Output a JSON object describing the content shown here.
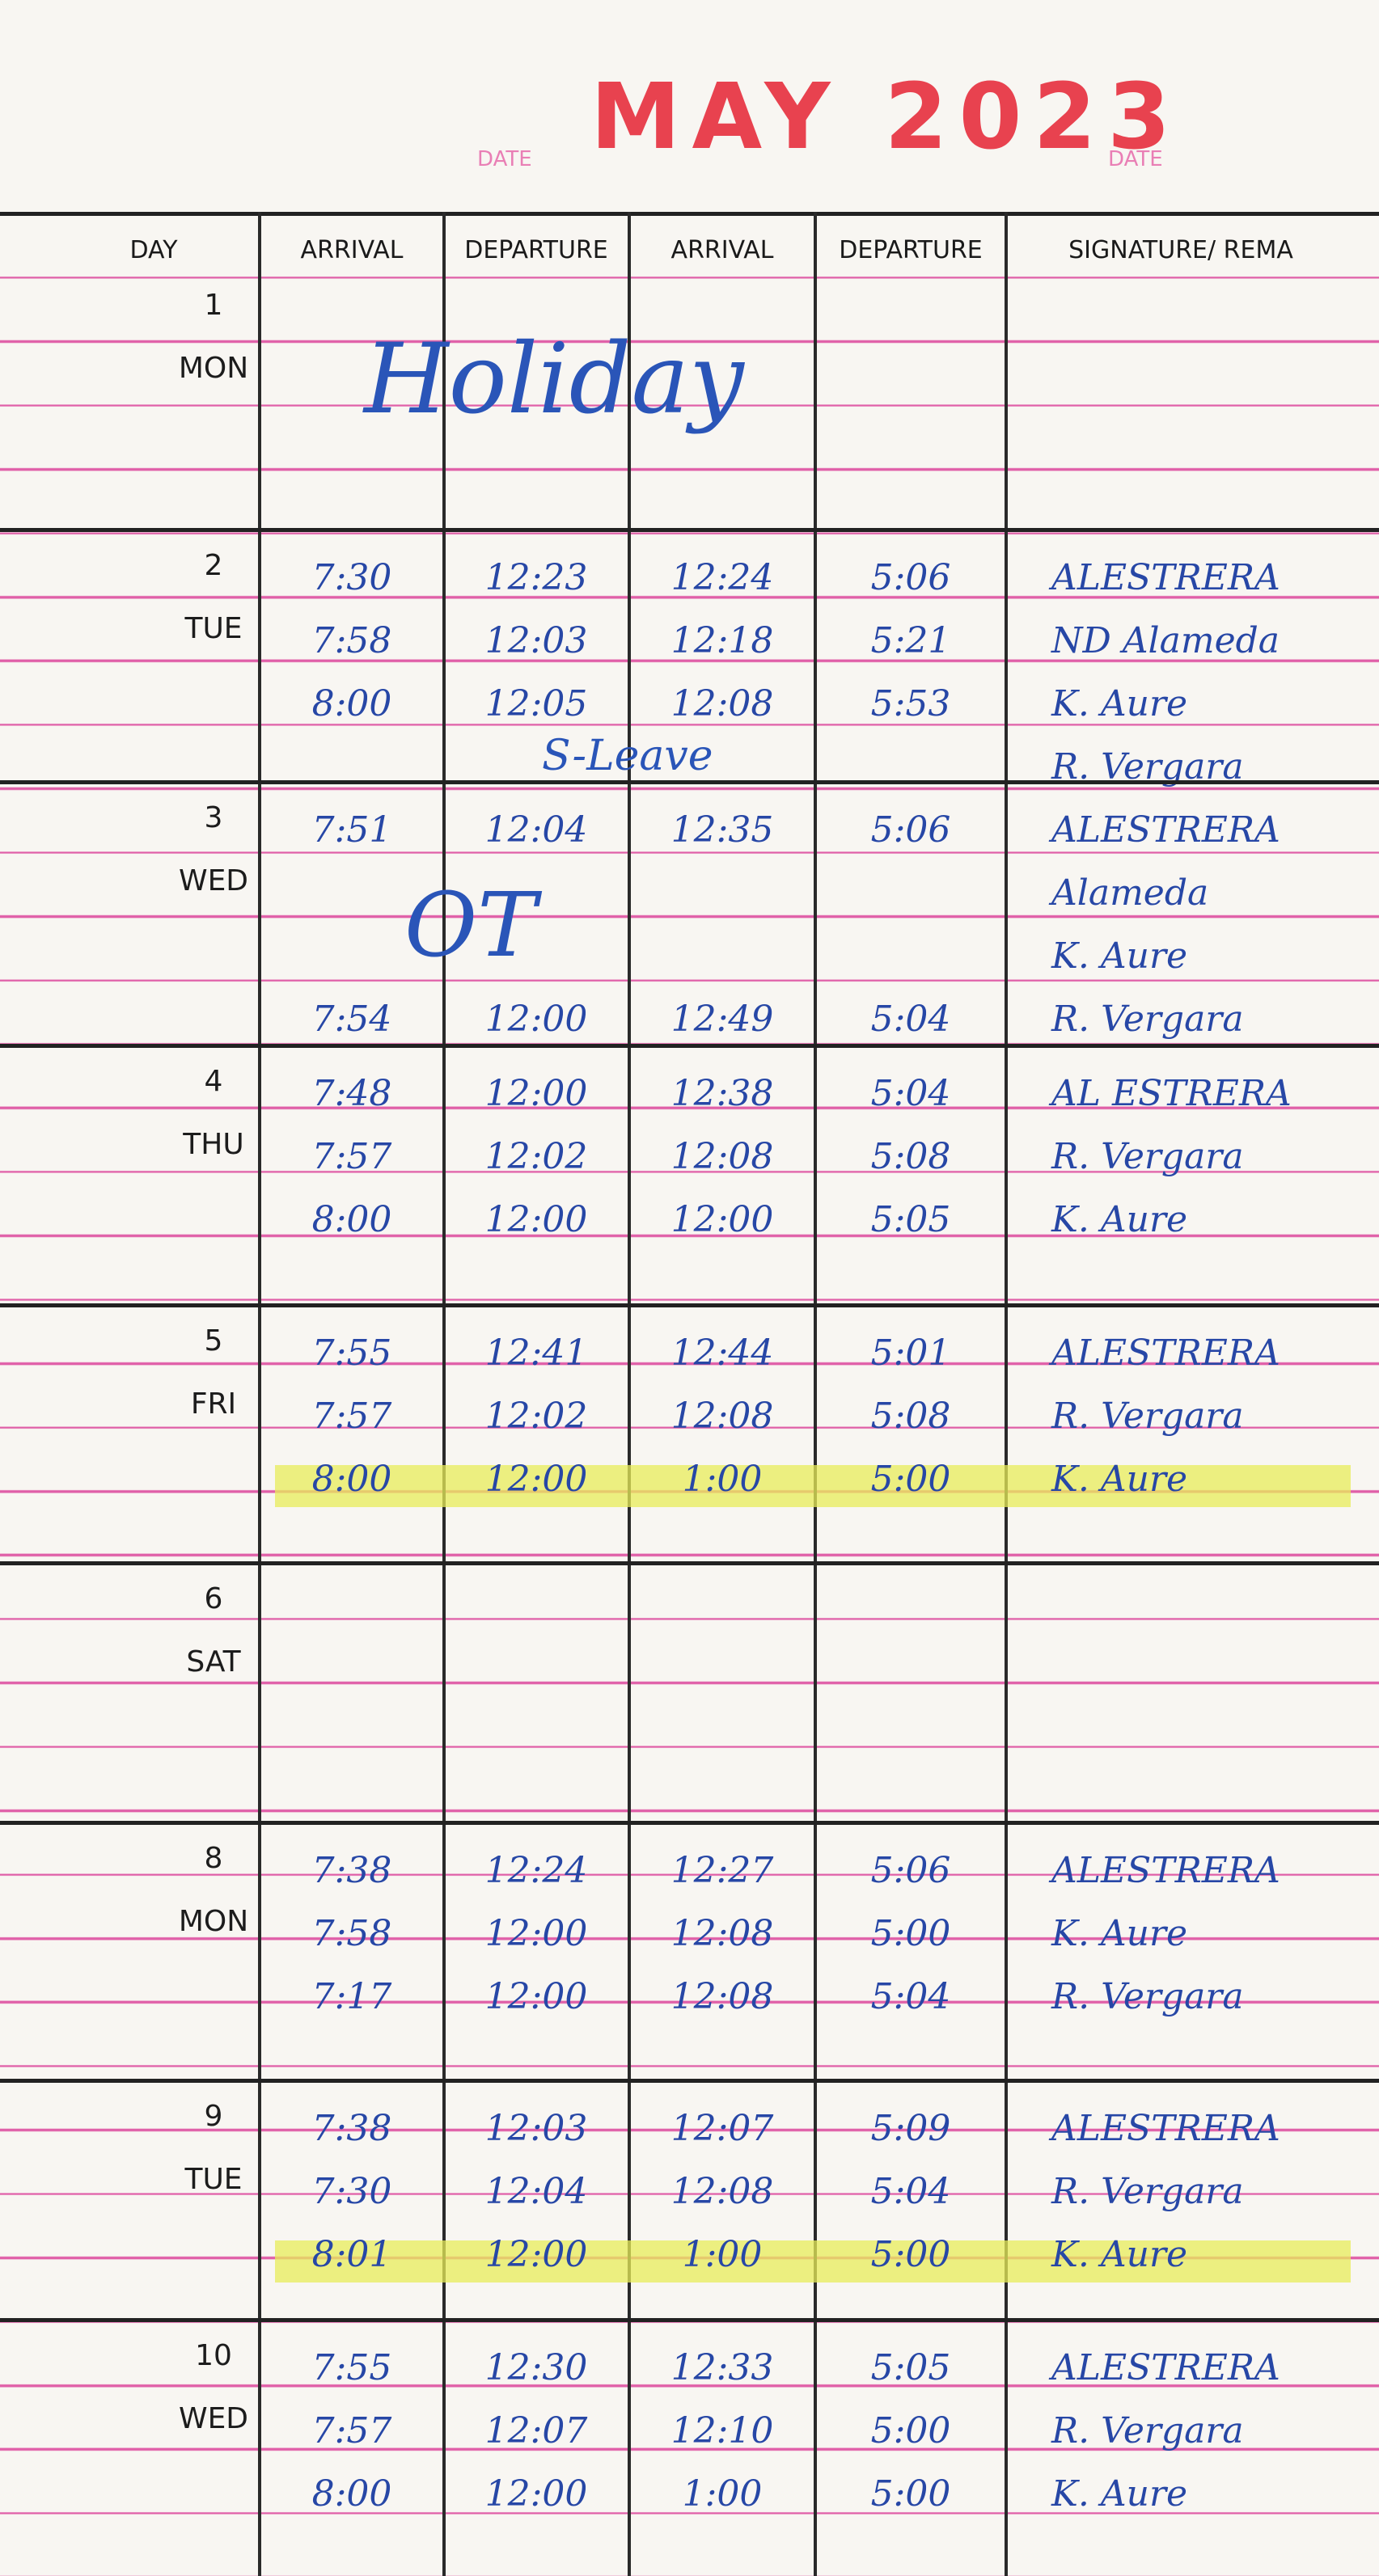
{
  "header": {
    "title": "MAY 2023",
    "date_labels": [
      "DATE",
      "DATE"
    ]
  },
  "table": {
    "headers": [
      "DAY",
      "ARRIVAL",
      "DEPARTURE",
      "ARRIVAL",
      "DEPARTURE",
      "SIGNATURE/ REMA"
    ]
  },
  "days": [
    {
      "number": "1",
      "weekday": "MON",
      "note": "Holiday",
      "rows": []
    },
    {
      "number": "2",
      "weekday": "TUE",
      "note": "S-Leave",
      "rows": [
        [
          "7:30",
          "12:23",
          "12:24",
          "5:06",
          "ALESTRERA"
        ],
        [
          "7:58",
          "12:03",
          "12:18",
          "5:21",
          "ND Alameda"
        ],
        [
          "8:00",
          "12:05",
          "12:08",
          "5:53",
          "K. Aure"
        ],
        [
          "",
          "",
          "",
          "",
          "R. Vergara"
        ]
      ]
    },
    {
      "number": "3",
      "weekday": "WED",
      "note": "OT",
      "rows": [
        [
          "7:51",
          "12:04",
          "12:35",
          "5:06",
          "ALESTRERA"
        ],
        [
          "",
          "",
          "",
          "",
          "Alameda"
        ],
        [
          "",
          "",
          "",
          "",
          "K. Aure"
        ],
        [
          "7:54",
          "12:00",
          "12:49",
          "5:04",
          "R. Vergara"
        ]
      ]
    },
    {
      "number": "4",
      "weekday": "THU",
      "rows": [
        [
          "7:48",
          "12:00",
          "12:38",
          "5:04",
          "AL ESTRERA"
        ],
        [
          "7:57",
          "12:02",
          "12:08",
          "5:08",
          "R. Vergara"
        ],
        [
          "8:00",
          "12:00",
          "12:00",
          "5:05",
          "K. Aure"
        ]
      ]
    },
    {
      "number": "5",
      "weekday": "FRI",
      "highlighted_rows": [
        2
      ],
      "rows": [
        [
          "7:55",
          "12:41",
          "12:44",
          "5:01",
          "ALESTRERA"
        ],
        [
          "7:57",
          "12:02",
          "12:08",
          "5:08",
          "R. Vergara"
        ],
        [
          "8:00",
          "12:00",
          "1:00",
          "5:00",
          "K. Aure"
        ]
      ]
    },
    {
      "number": "6",
      "weekday": "SAT",
      "rows": []
    },
    {
      "number": "8",
      "weekday": "MON",
      "rows": [
        [
          "7:38",
          "12:24",
          "12:27",
          "5:06",
          "ALESTRERA"
        ],
        [
          "7:58",
          "12:00",
          "12:08",
          "5:00",
          "K. Aure"
        ],
        [
          "7:17",
          "12:00",
          "12:08",
          "5:04",
          "R. Vergara"
        ]
      ]
    },
    {
      "number": "9",
      "weekday": "TUE",
      "highlighted_rows": [
        2
      ],
      "rows": [
        [
          "7:38",
          "12:03",
          "12:07",
          "5:09",
          "ALESTRERA"
        ],
        [
          "7:30",
          "12:04",
          "12:08",
          "5:04",
          "R. Vergara"
        ],
        [
          "8:01",
          "12:00",
          "1:00",
          "5:00",
          "K. Aure"
        ]
      ]
    },
    {
      "number": "10",
      "weekday": "WED",
      "rows": [
        [
          "7:55",
          "12:30",
          "12:33",
          "5:05",
          "ALESTRERA"
        ],
        [
          "7:57",
          "12:07",
          "12:10",
          "5:00",
          "R. Vergara"
        ],
        [
          "8:00",
          "12:00",
          "1:00",
          "5:00",
          "K. Aure"
        ]
      ]
    }
  ]
}
